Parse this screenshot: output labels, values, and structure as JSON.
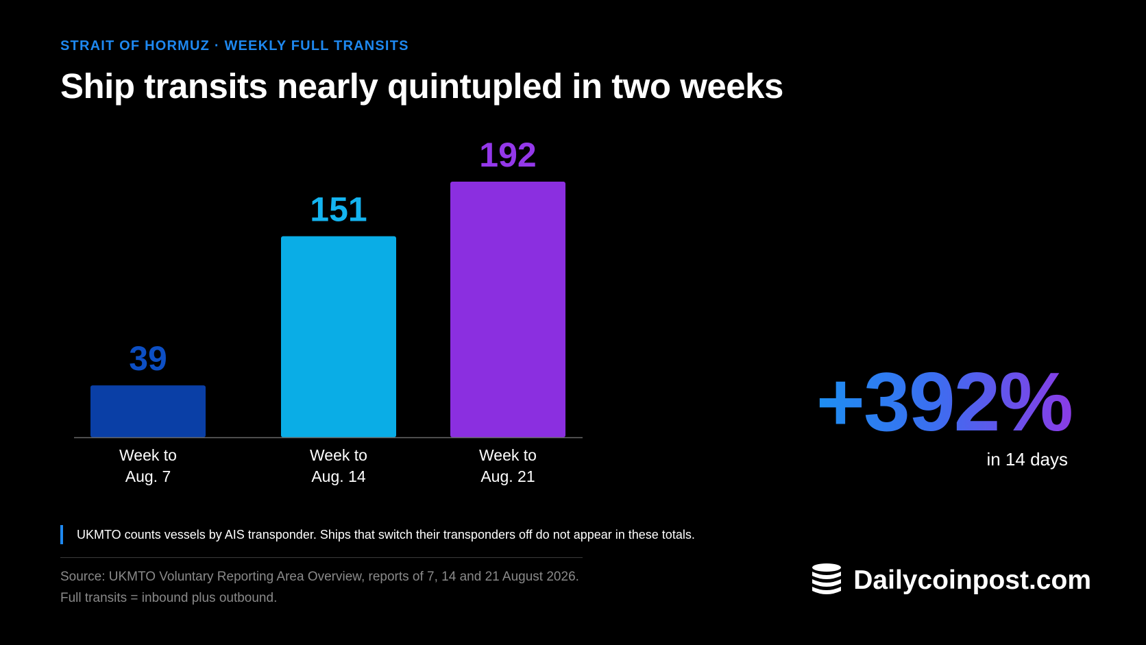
{
  "header": {
    "kicker": "STRAIT OF HORMUZ · WEEKLY FULL TRANSITS",
    "title": "Ship transits nearly quintupled in two weeks"
  },
  "chart_data": {
    "type": "bar",
    "categories": [
      [
        "Week to",
        "Aug. 7"
      ],
      [
        "Week to",
        "Aug. 14"
      ],
      [
        "Week to",
        "Aug. 21"
      ]
    ],
    "values": [
      39,
      151,
      192
    ],
    "colors": [
      "#0a3fa6",
      "#0aade6",
      "#8b2fe0"
    ],
    "label_colors": [
      "#0d4fc4",
      "#14b4f0",
      "#9438ea"
    ],
    "ylim": [
      0,
      192
    ],
    "grid": false,
    "legend": "none"
  },
  "stat": {
    "value": "+392%",
    "caption": "in 14 days"
  },
  "note": "UKMTO counts vessels by AIS transponder. Ships that switch their transponders off do not appear in these totals.",
  "source": {
    "line1": "Source: UKMTO Voluntary Reporting Area Overview, reports of 7, 14 and 21 August 2026.",
    "line2": "Full transits = inbound plus outbound."
  },
  "brand": {
    "name": "Dailycoinpost.com",
    "icon": "coin-stack-icon"
  }
}
